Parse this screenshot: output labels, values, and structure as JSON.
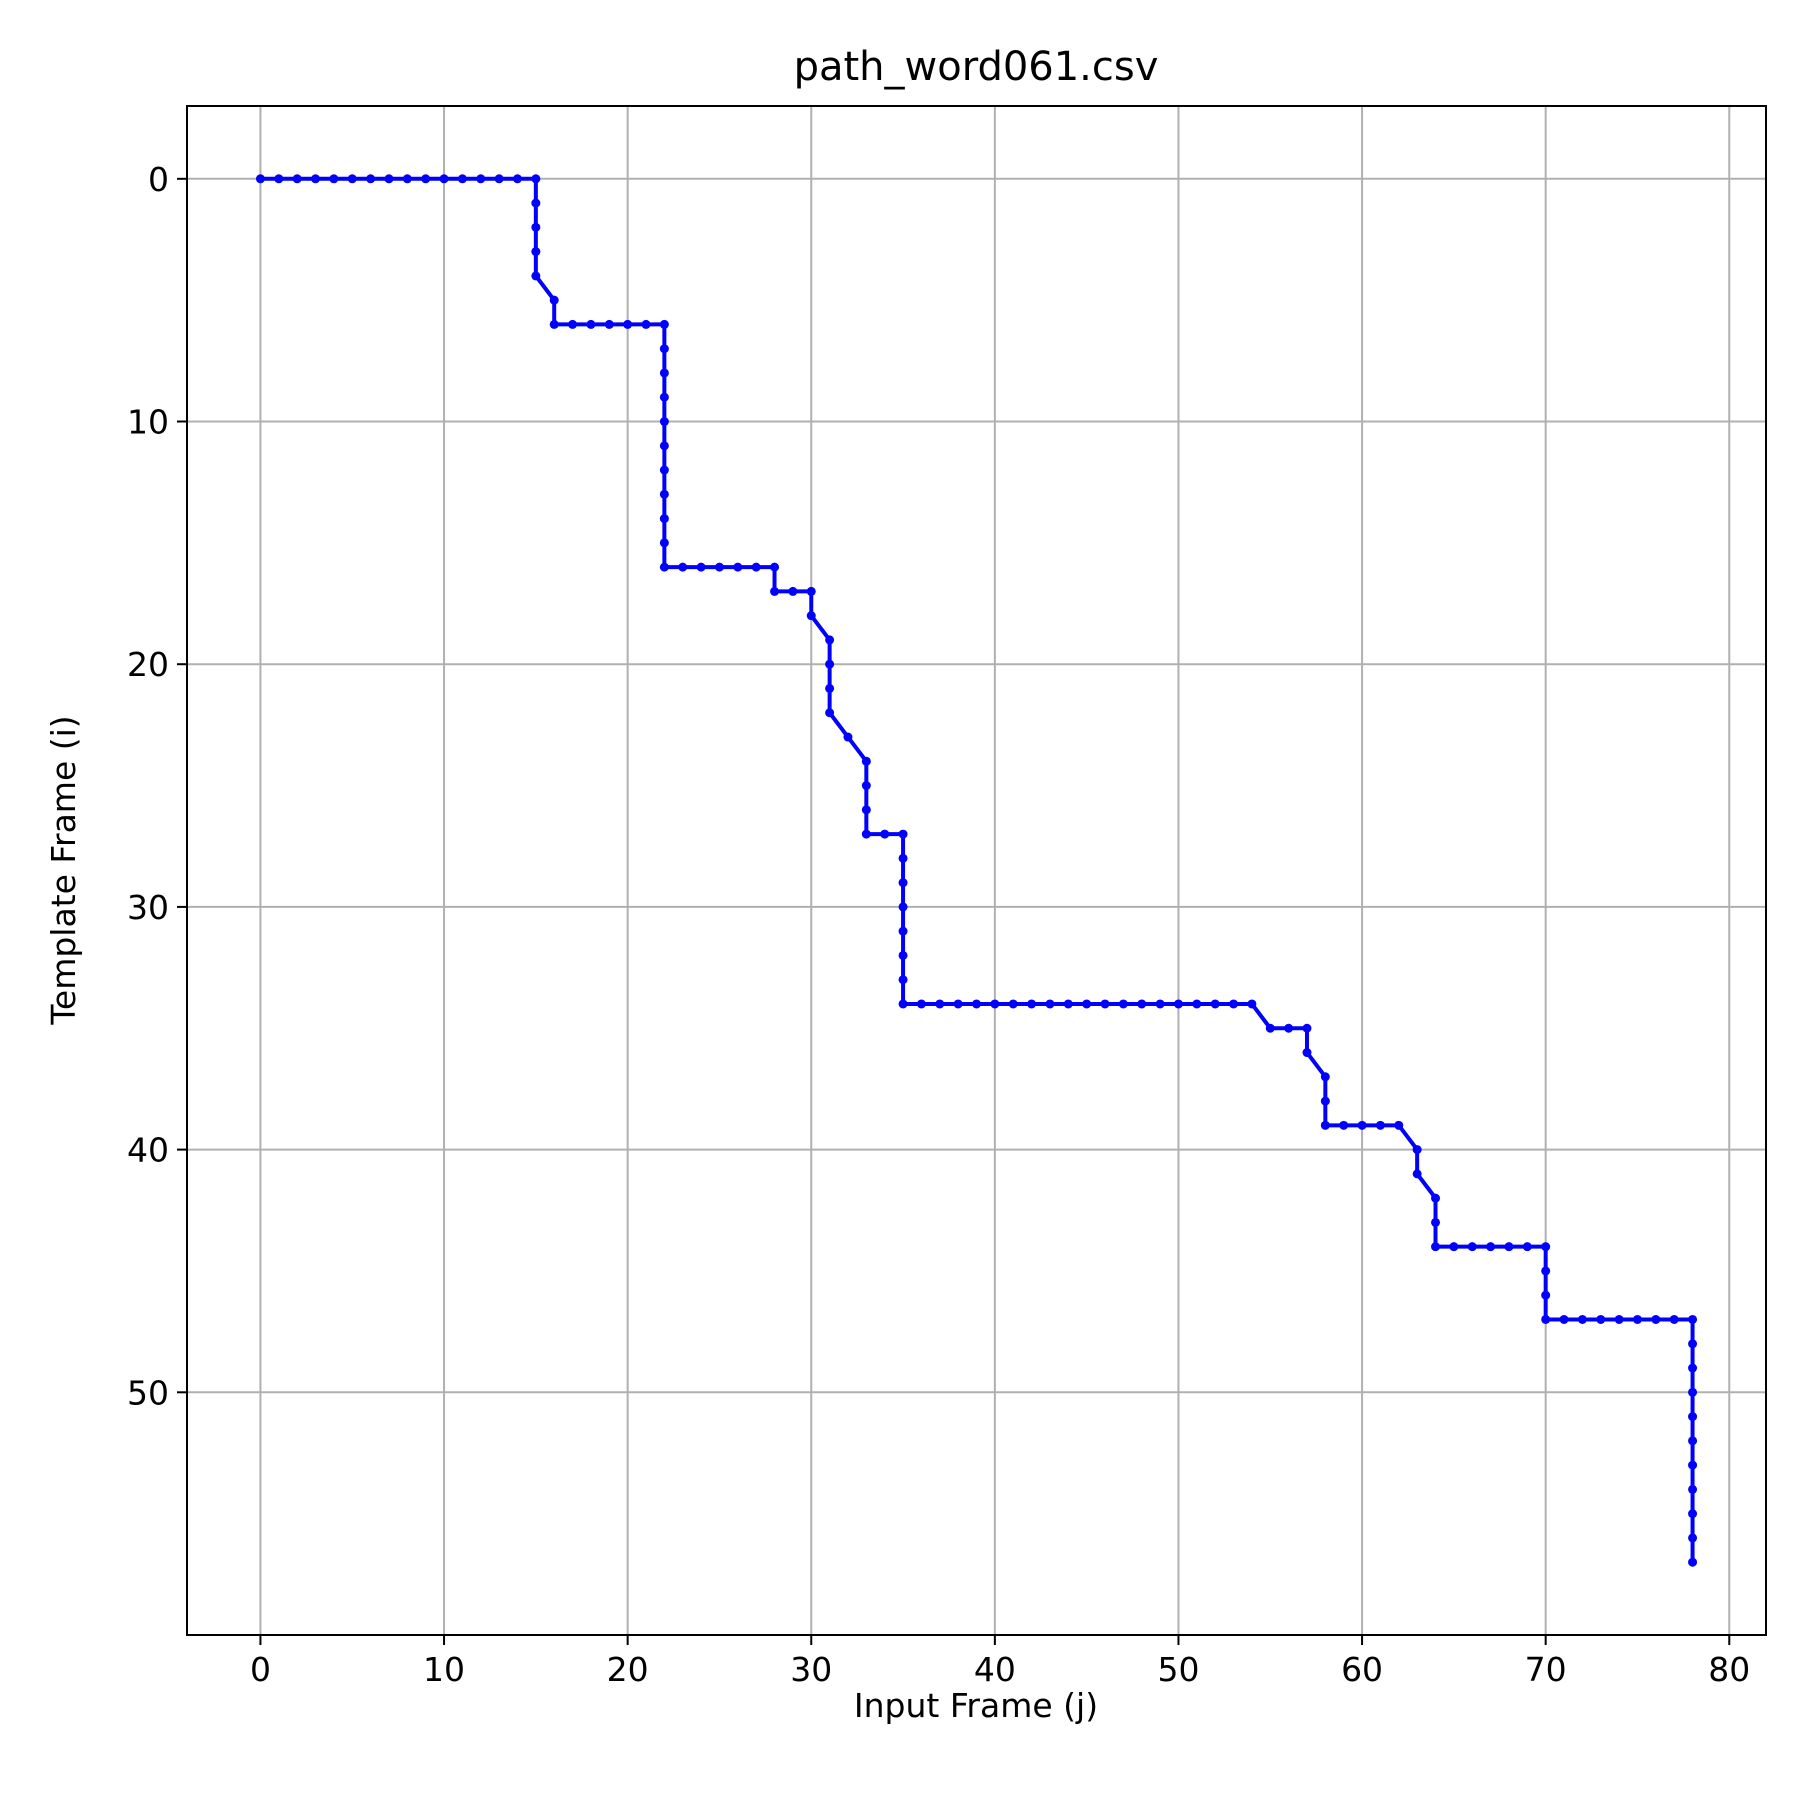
{
  "chart_data": {
    "type": "line",
    "title": "path_word061.csv",
    "xlabel": "Input Frame (j)",
    "ylabel": "Template Frame (i)",
    "xlim": [
      -4,
      82
    ],
    "ylim": [
      60,
      -3
    ],
    "y_inverted": true,
    "grid": true,
    "x_ticks": [
      0,
      10,
      20,
      30,
      40,
      50,
      60,
      70,
      80
    ],
    "y_ticks": [
      0,
      10,
      20,
      30,
      40,
      50
    ],
    "series": [
      {
        "color": "#0000ff",
        "marker": "dot",
        "points": [
          [
            0,
            0
          ],
          [
            1,
            0
          ],
          [
            2,
            0
          ],
          [
            3,
            0
          ],
          [
            4,
            0
          ],
          [
            5,
            0
          ],
          [
            6,
            0
          ],
          [
            7,
            0
          ],
          [
            8,
            0
          ],
          [
            9,
            0
          ],
          [
            10,
            0
          ],
          [
            11,
            0
          ],
          [
            12,
            0
          ],
          [
            13,
            0
          ],
          [
            14,
            0
          ],
          [
            15,
            0
          ],
          [
            15,
            1
          ],
          [
            15,
            2
          ],
          [
            15,
            3
          ],
          [
            15,
            4
          ],
          [
            16,
            5
          ],
          [
            16,
            6
          ],
          [
            17,
            6
          ],
          [
            18,
            6
          ],
          [
            19,
            6
          ],
          [
            20,
            6
          ],
          [
            21,
            6
          ],
          [
            22,
            6
          ],
          [
            22,
            7
          ],
          [
            22,
            8
          ],
          [
            22,
            9
          ],
          [
            22,
            10
          ],
          [
            22,
            11
          ],
          [
            22,
            12
          ],
          [
            22,
            13
          ],
          [
            22,
            14
          ],
          [
            22,
            15
          ],
          [
            22,
            16
          ],
          [
            23,
            16
          ],
          [
            24,
            16
          ],
          [
            25,
            16
          ],
          [
            26,
            16
          ],
          [
            27,
            16
          ],
          [
            28,
            16
          ],
          [
            28,
            17
          ],
          [
            29,
            17
          ],
          [
            30,
            17
          ],
          [
            30,
            18
          ],
          [
            31,
            19
          ],
          [
            31,
            20
          ],
          [
            31,
            21
          ],
          [
            31,
            22
          ],
          [
            32,
            23
          ],
          [
            33,
            24
          ],
          [
            33,
            25
          ],
          [
            33,
            26
          ],
          [
            33,
            27
          ],
          [
            34,
            27
          ],
          [
            35,
            27
          ],
          [
            35,
            28
          ],
          [
            35,
            29
          ],
          [
            35,
            30
          ],
          [
            35,
            31
          ],
          [
            35,
            32
          ],
          [
            35,
            33
          ],
          [
            35,
            34
          ],
          [
            36,
            34
          ],
          [
            37,
            34
          ],
          [
            38,
            34
          ],
          [
            39,
            34
          ],
          [
            40,
            34
          ],
          [
            41,
            34
          ],
          [
            42,
            34
          ],
          [
            43,
            34
          ],
          [
            44,
            34
          ],
          [
            45,
            34
          ],
          [
            46,
            34
          ],
          [
            47,
            34
          ],
          [
            48,
            34
          ],
          [
            49,
            34
          ],
          [
            50,
            34
          ],
          [
            51,
            34
          ],
          [
            52,
            34
          ],
          [
            53,
            34
          ],
          [
            54,
            34
          ],
          [
            55,
            35
          ],
          [
            56,
            35
          ],
          [
            57,
            35
          ],
          [
            57,
            36
          ],
          [
            58,
            37
          ],
          [
            58,
            38
          ],
          [
            58,
            39
          ],
          [
            59,
            39
          ],
          [
            60,
            39
          ],
          [
            61,
            39
          ],
          [
            62,
            39
          ],
          [
            63,
            40
          ],
          [
            63,
            41
          ],
          [
            64,
            42
          ],
          [
            64,
            43
          ],
          [
            64,
            44
          ],
          [
            65,
            44
          ],
          [
            66,
            44
          ],
          [
            67,
            44
          ],
          [
            68,
            44
          ],
          [
            69,
            44
          ],
          [
            70,
            44
          ],
          [
            70,
            45
          ],
          [
            70,
            46
          ],
          [
            70,
            47
          ],
          [
            71,
            47
          ],
          [
            72,
            47
          ],
          [
            73,
            47
          ],
          [
            74,
            47
          ],
          [
            75,
            47
          ],
          [
            76,
            47
          ],
          [
            77,
            47
          ],
          [
            78,
            47
          ],
          [
            78,
            48
          ],
          [
            78,
            49
          ],
          [
            78,
            50
          ],
          [
            78,
            51
          ],
          [
            78,
            52
          ],
          [
            78,
            53
          ],
          [
            78,
            54
          ],
          [
            78,
            55
          ],
          [
            78,
            56
          ],
          [
            78,
            57
          ]
        ]
      }
    ]
  }
}
